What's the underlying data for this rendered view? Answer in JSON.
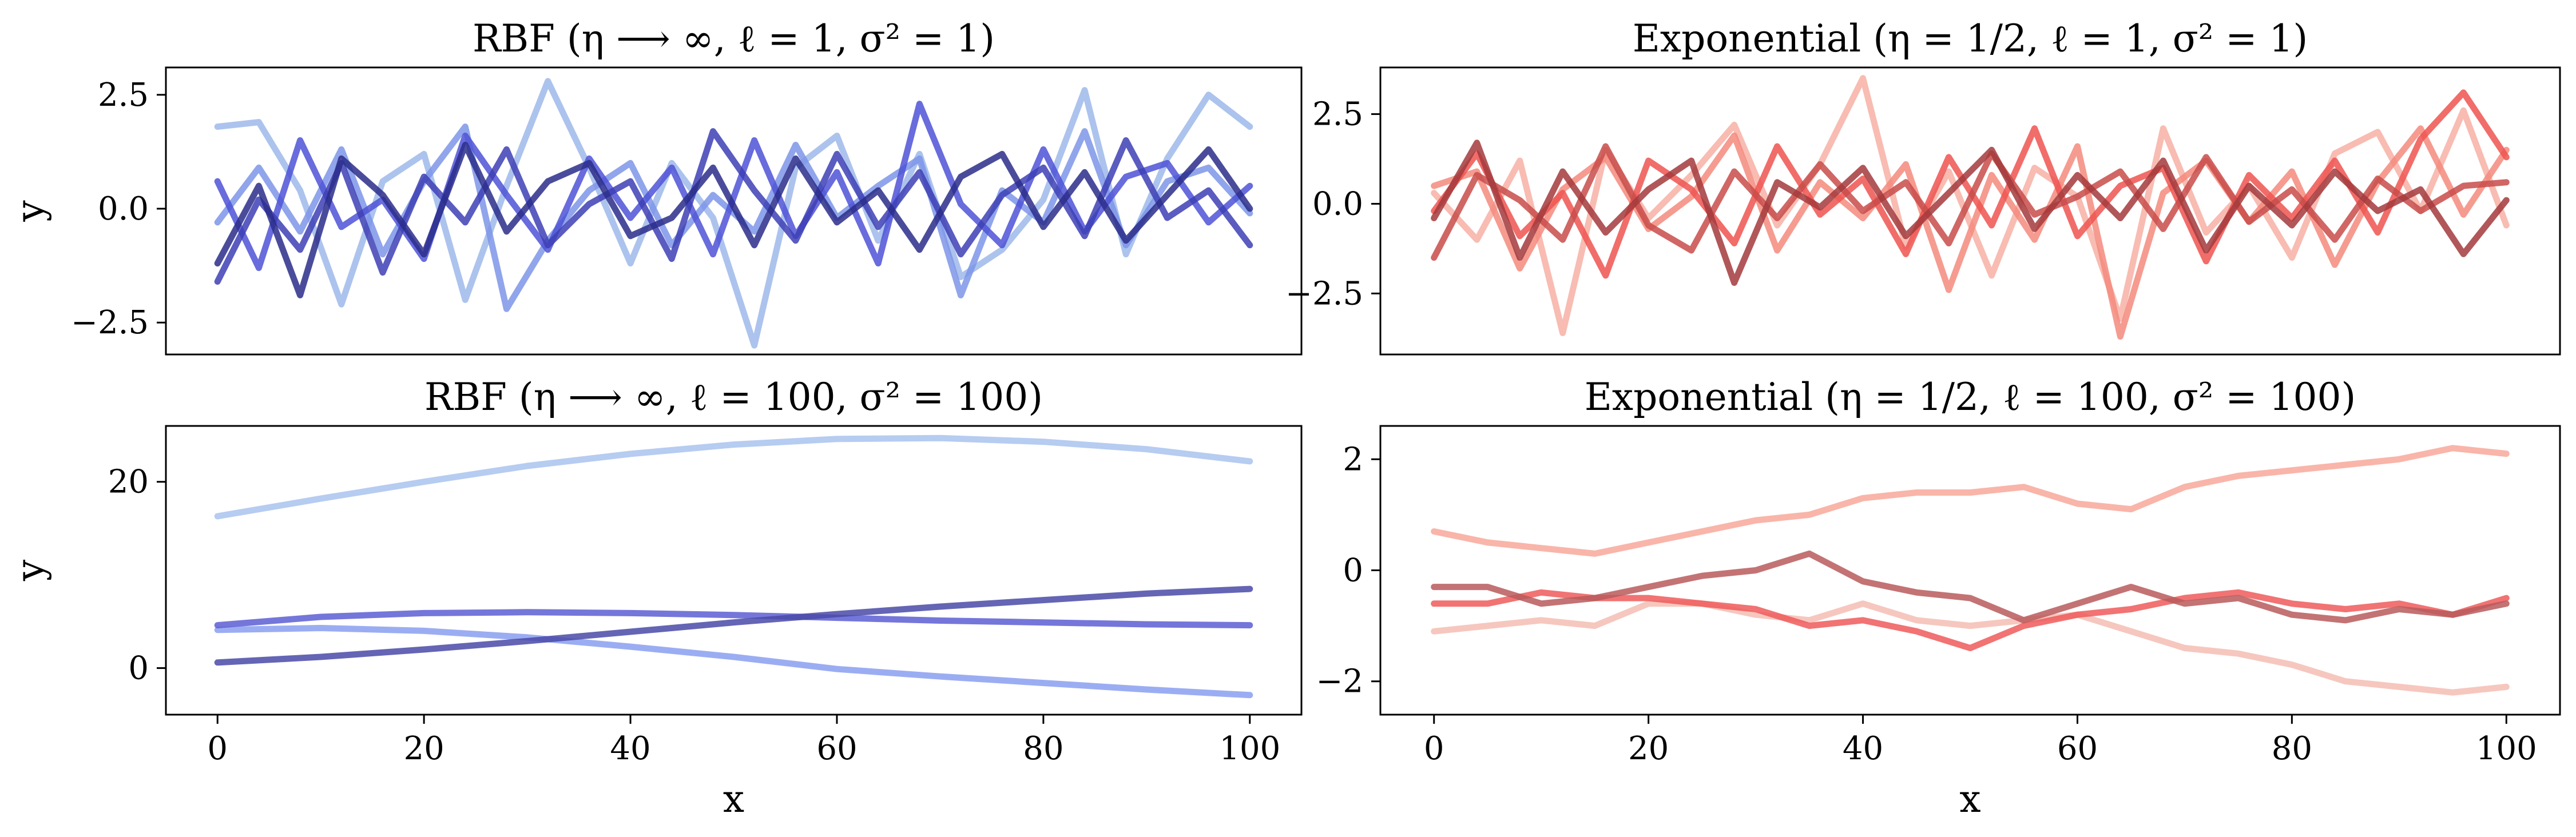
{
  "chart_data": [
    {
      "type": "line",
      "title": "RBF (η ⟶ ∞, ℓ = 1, σ² = 1)",
      "xlabel": "",
      "ylabel": "y",
      "xlim": [
        -5,
        105
      ],
      "ylim": [
        -3.2,
        3.1
      ],
      "xticks": [],
      "yticks": [
        -2.5,
        0.0,
        2.5
      ],
      "ytick_labels": [
        "−2.5",
        "0.0",
        "2.5"
      ],
      "grid": false,
      "x": [
        0,
        4,
        8,
        12,
        16,
        20,
        24,
        28,
        32,
        36,
        40,
        44,
        48,
        52,
        56,
        60,
        64,
        68,
        72,
        76,
        80,
        84,
        88,
        92,
        96,
        100
      ],
      "series": [
        {
          "color": "#9db8ea",
          "values": [
            1.8,
            1.9,
            0.4,
            -2.1,
            0.6,
            1.2,
            -2.0,
            0.5,
            2.8,
            0.9,
            -1.2,
            1.0,
            -0.2,
            -3.0,
            0.9,
            1.6,
            -0.7,
            1.2,
            -1.5,
            -0.9,
            0.2,
            2.6,
            -1.0,
            1.1,
            2.5,
            1.8
          ]
        },
        {
          "color": "#7d95e8",
          "values": [
            -0.3,
            0.9,
            -0.5,
            1.3,
            -1.0,
            0.6,
            1.8,
            -2.2,
            -0.7,
            0.4,
            1.0,
            -0.8,
            0.3,
            -0.5,
            1.4,
            -0.2,
            0.5,
            1.1,
            -1.9,
            0.4,
            -0.3,
            1.7,
            -0.8,
            0.6,
            0.9,
            -0.1
          ]
        },
        {
          "color": "#4e52d6",
          "values": [
            0.6,
            -1.3,
            1.5,
            -0.4,
            0.2,
            -1.1,
            1.6,
            0.3,
            -0.9,
            1.1,
            -0.2,
            0.9,
            -1.0,
            1.5,
            -0.6,
            0.8,
            -1.2,
            2.3,
            0.1,
            -0.8,
            1.3,
            -0.5,
            0.7,
            1.0,
            -0.3,
            0.5
          ]
        },
        {
          "color": "#3d3fb5",
          "values": [
            -1.6,
            0.2,
            -0.9,
            1.0,
            -1.4,
            0.7,
            -0.3,
            1.3,
            -0.8,
            0.1,
            0.6,
            -1.1,
            1.7,
            0.4,
            -0.7,
            1.2,
            -0.4,
            0.8,
            -1.0,
            0.3,
            0.9,
            -0.6,
            1.5,
            -0.2,
            0.4,
            -0.8
          ]
        },
        {
          "color": "#2a2d8a",
          "values": [
            -1.2,
            0.5,
            -1.9,
            1.1,
            0.3,
            -1.0,
            1.4,
            -0.5,
            0.6,
            1.0,
            -0.6,
            -0.2,
            0.9,
            -0.8,
            1.1,
            -0.3,
            0.4,
            -0.9,
            0.7,
            1.2,
            -0.4,
            0.8,
            -0.7,
            0.3,
            1.3,
            0.0
          ]
        }
      ]
    },
    {
      "type": "line",
      "title": "Exponential (η = 1/2, ℓ = 1, σ² = 1)",
      "xlabel": "",
      "ylabel": "",
      "xlim": [
        -5,
        105
      ],
      "ylim": [
        -4.2,
        3.8
      ],
      "xticks": [],
      "yticks": [
        -2.5,
        0.0,
        2.5
      ],
      "ytick_labels": [
        "−2.5",
        "0.0",
        "2.5"
      ],
      "grid": false,
      "x": [
        0,
        4,
        8,
        12,
        16,
        20,
        24,
        28,
        32,
        36,
        40,
        44,
        48,
        52,
        56,
        60,
        64,
        68,
        72,
        76,
        80,
        84,
        88,
        92,
        96,
        100
      ],
      "series": [
        {
          "color": "#f7b0a4",
          "values": [
            0.3,
            -1.0,
            1.2,
            -3.6,
            1.5,
            -0.4,
            0.8,
            2.2,
            -0.6,
            1.1,
            3.5,
            -1.2,
            0.9,
            -2.0,
            1.0,
            0.2,
            -3.2,
            2.1,
            -0.8,
            0.5,
            -1.5,
            1.4,
            2.0,
            -0.2,
            2.6,
            -0.6
          ]
        },
        {
          "color": "#f58a7c",
          "values": [
            0.5,
            0.9,
            -1.8,
            0.4,
            1.3,
            -0.7,
            0.2,
            1.9,
            -1.3,
            0.6,
            -0.4,
            1.1,
            -2.4,
            0.8,
            -1.0,
            1.6,
            -3.7,
            0.3,
            1.2,
            -0.5,
            0.9,
            -1.7,
            0.6,
            2.1,
            -0.3,
            1.5
          ]
        },
        {
          "color": "#ef5450",
          "values": [
            -0.2,
            1.4,
            -0.9,
            0.3,
            -2.0,
            1.2,
            0.4,
            -1.1,
            1.6,
            -0.3,
            0.7,
            -1.4,
            1.3,
            -0.6,
            2.1,
            -0.9,
            0.5,
            1.0,
            -1.6,
            0.8,
            -0.4,
            1.2,
            -0.8,
            1.8,
            3.1,
            1.3
          ]
        },
        {
          "color": "#c84c4a",
          "values": [
            -1.5,
            0.8,
            0.1,
            -1.0,
            1.6,
            -0.6,
            -1.3,
            0.9,
            -0.4,
            1.1,
            -0.2,
            0.6,
            -1.1,
            1.4,
            -0.3,
            0.2,
            0.9,
            -0.7,
            1.3,
            -0.5,
            0.4,
            -1.0,
            0.7,
            -0.2,
            0.5,
            0.6
          ]
        },
        {
          "color": "#a33a3c",
          "values": [
            -0.4,
            1.7,
            -1.5,
            0.9,
            -0.8,
            0.4,
            1.2,
            -2.2,
            0.6,
            -0.1,
            1.0,
            -0.9,
            0.3,
            1.5,
            -0.7,
            0.8,
            -0.4,
            1.2,
            -1.3,
            0.5,
            -0.6,
            0.9,
            -0.2,
            0.4,
            -1.4,
            0.1
          ]
        }
      ]
    },
    {
      "type": "line",
      "title": "RBF (η ⟶ ∞, ℓ = 100, σ² = 100)",
      "xlabel": "x",
      "ylabel": "y",
      "xlim": [
        -5,
        105
      ],
      "ylim": [
        -5,
        26
      ],
      "xticks": [
        0,
        20,
        40,
        60,
        80,
        100
      ],
      "xtick_labels": [
        "0",
        "20",
        "40",
        "60",
        "80",
        "100"
      ],
      "yticks": [
        0,
        20
      ],
      "ytick_labels": [
        "0",
        "20"
      ],
      "grid": false,
      "x": [
        0,
        10,
        20,
        30,
        40,
        50,
        60,
        70,
        80,
        90,
        100
      ],
      "series": [
        {
          "color": "#a9c3ee",
          "values": [
            16.3,
            18.2,
            20.0,
            21.7,
            23.0,
            24.0,
            24.6,
            24.7,
            24.3,
            23.5,
            22.2
          ]
        },
        {
          "color": "#8a9ff0",
          "values": [
            4.1,
            4.3,
            4.0,
            3.3,
            2.3,
            1.2,
            -0.1,
            -0.9,
            -1.6,
            -2.3,
            -2.9
          ]
        },
        {
          "color": "#5d5ed4",
          "values": [
            4.6,
            5.5,
            5.9,
            6.0,
            5.9,
            5.7,
            5.4,
            5.1,
            4.9,
            4.7,
            4.6
          ]
        },
        {
          "color": "#4a4aa8",
          "values": [
            0.6,
            1.2,
            2.0,
            2.9,
            3.9,
            4.9,
            5.8,
            6.6,
            7.3,
            8.0,
            8.5
          ]
        }
      ]
    },
    {
      "type": "line",
      "title": "Exponential (η = 1/2, ℓ = 100, σ² = 100)",
      "xlabel": "x",
      "ylabel": "",
      "xlim": [
        -5,
        105
      ],
      "ylim": [
        -2.6,
        2.6
      ],
      "xticks": [
        0,
        20,
        40,
        60,
        80,
        100
      ],
      "xtick_labels": [
        "0",
        "20",
        "40",
        "60",
        "80",
        "100"
      ],
      "yticks": [
        -2,
        0,
        2
      ],
      "ytick_labels": [
        "−2",
        "0",
        "2"
      ],
      "grid": false,
      "x": [
        0,
        5,
        10,
        15,
        20,
        25,
        30,
        35,
        40,
        45,
        50,
        55,
        60,
        65,
        70,
        75,
        80,
        85,
        90,
        95,
        100
      ],
      "series": [
        {
          "color": "#f8a89a",
          "values": [
            0.7,
            0.5,
            0.4,
            0.3,
            0.5,
            0.7,
            0.9,
            1.0,
            1.3,
            1.4,
            1.4,
            1.5,
            1.2,
            1.1,
            1.5,
            1.7,
            1.8,
            1.9,
            2.0,
            2.2,
            2.1
          ]
        },
        {
          "color": "#f5bdb3",
          "values": [
            -1.1,
            -1.0,
            -0.9,
            -1.0,
            -0.6,
            -0.6,
            -0.8,
            -0.9,
            -0.6,
            -0.9,
            -1.0,
            -0.9,
            -0.8,
            -1.1,
            -1.4,
            -1.5,
            -1.7,
            -2.0,
            -2.1,
            -2.2,
            -2.1
          ]
        },
        {
          "color": "#ee5a5a",
          "values": [
            -0.6,
            -0.6,
            -0.4,
            -0.5,
            -0.5,
            -0.6,
            -0.7,
            -1.0,
            -0.9,
            -1.1,
            -1.4,
            -1.0,
            -0.8,
            -0.7,
            -0.5,
            -0.4,
            -0.6,
            -0.7,
            -0.6,
            -0.8,
            -0.5
          ]
        },
        {
          "color": "#b95a5c",
          "values": [
            -0.3,
            -0.3,
            -0.6,
            -0.5,
            -0.3,
            -0.1,
            0.0,
            0.3,
            -0.2,
            -0.4,
            -0.5,
            -0.9,
            -0.6,
            -0.3,
            -0.6,
            -0.5,
            -0.8,
            -0.9,
            -0.7,
            -0.8,
            -0.6
          ]
        }
      ]
    }
  ]
}
